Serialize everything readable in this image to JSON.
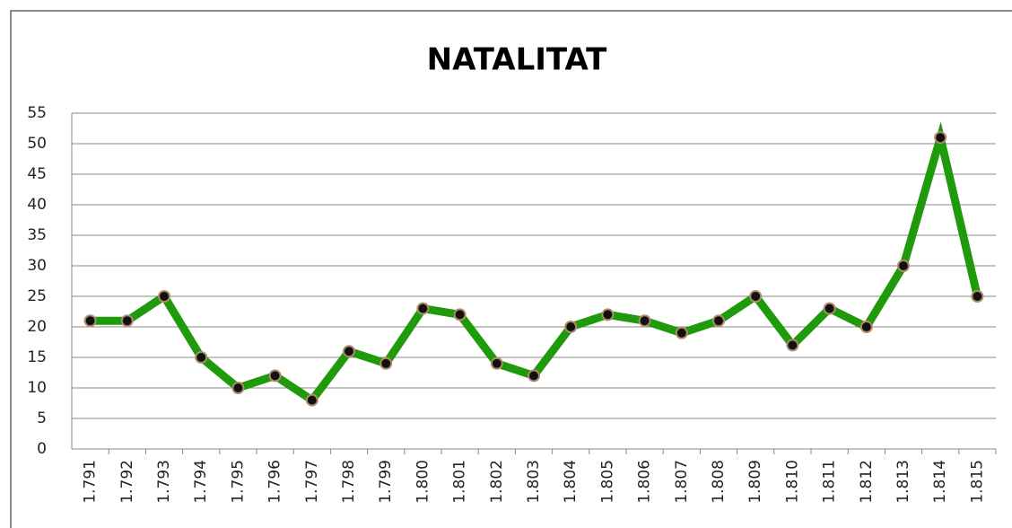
{
  "chart_data": {
    "type": "line",
    "title": "NATALITAT",
    "categories": [
      "1.791",
      "1.792",
      "1.793",
      "1.794",
      "1.795",
      "1.796",
      "1.797",
      "1.798",
      "1.799",
      "1.800",
      "1.801",
      "1.802",
      "1.803",
      "1.804",
      "1.805",
      "1.806",
      "1.807",
      "1.808",
      "1.809",
      "1.810",
      "1.811",
      "1.812",
      "1.813",
      "1.814",
      "1.815"
    ],
    "values": [
      21,
      21,
      25,
      15,
      10,
      12,
      8,
      16,
      14,
      23,
      22,
      14,
      12,
      20,
      22,
      21,
      19,
      21,
      25,
      17,
      23,
      20,
      30,
      51,
      25
    ],
    "color": "#1e9a0a",
    "ylim": [
      0,
      55
    ],
    "yticks": [
      0,
      5,
      10,
      15,
      20,
      25,
      30,
      35,
      40,
      45,
      50,
      55
    ],
    "grid": true
  }
}
